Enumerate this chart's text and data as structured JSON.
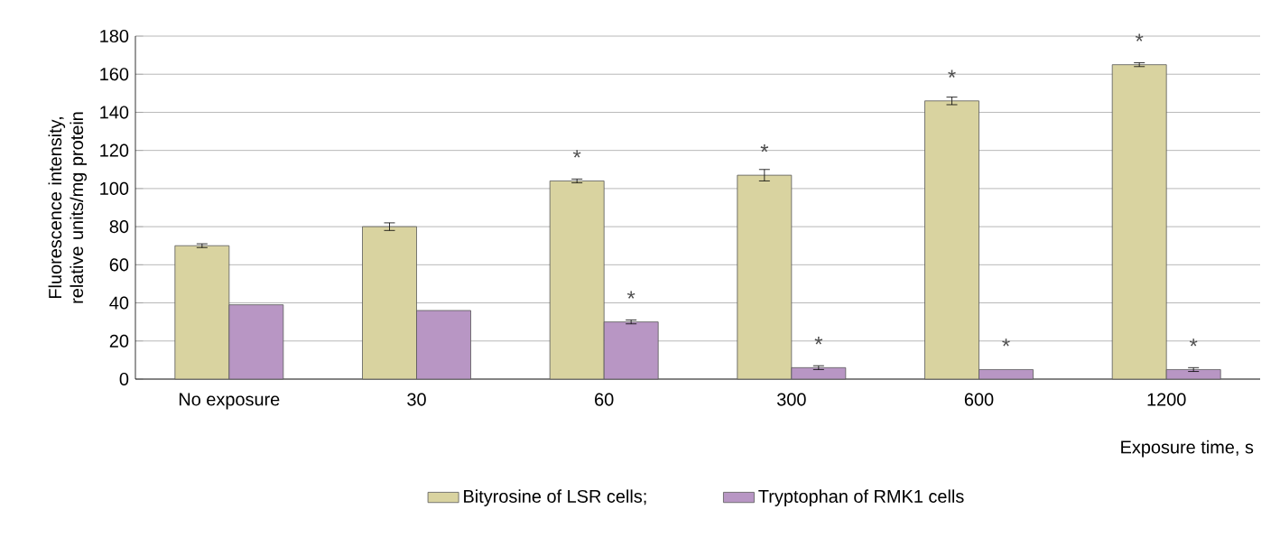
{
  "chart_data": {
    "type": "bar",
    "ylabel": "Fluorescence intensity, relative units/mg protein",
    "xlabel": "Exposure time, s",
    "categories": [
      "No exposure",
      "30",
      "60",
      "300",
      "600",
      "1200"
    ],
    "series": [
      {
        "name": "Bityrosine of LSR cells;",
        "color": "#d9d3a0",
        "values": [
          70,
          80,
          104,
          107,
          146,
          165
        ],
        "errors": [
          1,
          2,
          1,
          3,
          2,
          1
        ]
      },
      {
        "name": "Tryptophan of RMK1 cells",
        "color": "#b896c4",
        "values": [
          39,
          36,
          30,
          6,
          5,
          5
        ],
        "errors": [
          null,
          null,
          1,
          1,
          null,
          1
        ]
      }
    ],
    "ylim": [
      0,
      180
    ],
    "yticks": [
      0,
      20,
      40,
      60,
      80,
      100,
      120,
      140,
      160,
      180
    ],
    "grid": "y",
    "legend": "bottom",
    "annotations": [
      {
        "text": "*",
        "x": "60",
        "y": 104
      },
      {
        "text": "*",
        "x": "60",
        "y": 30
      },
      {
        "text": "*",
        "x": "300",
        "y": 107
      },
      {
        "text": "*",
        "x": "300",
        "y": 6
      },
      {
        "text": "*",
        "x": "600",
        "y": 146
      },
      {
        "text": "*",
        "x": "600",
        "y": 5
      },
      {
        "text": "*",
        "x": "1200",
        "y": 165
      },
      {
        "text": "*",
        "x": "1200",
        "y": 5
      }
    ]
  }
}
